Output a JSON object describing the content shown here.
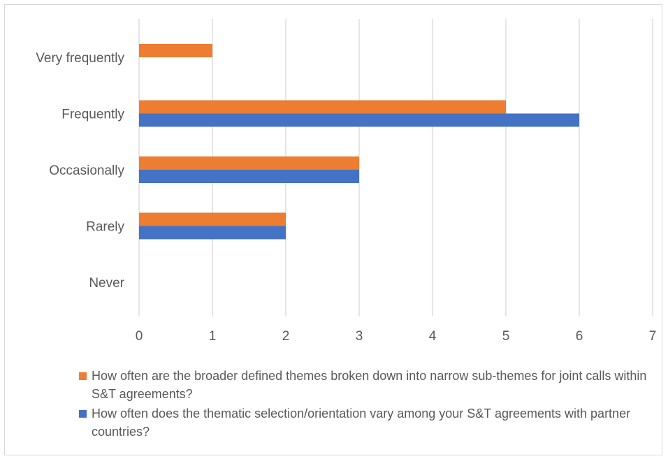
{
  "chart_data": {
    "type": "bar",
    "orientation": "horizontal",
    "categories": [
      "Very frequently",
      "Frequently",
      "Occasionally",
      "Rarely",
      "Never"
    ],
    "series": [
      {
        "name": "How often are the broader defined themes broken down into narrow sub-themes for joint calls within S&T agreements?",
        "color": "#ED7D31",
        "values": [
          1,
          5,
          3,
          2,
          0
        ]
      },
      {
        "name": "How often does the thematic selection/orientation vary among your S&T agreements with partner countries?",
        "color": "#4472C4",
        "values": [
          0,
          6,
          3,
          2,
          0
        ]
      }
    ],
    "xlim": [
      0,
      7
    ],
    "x_ticks": [
      "0",
      "1",
      "2",
      "3",
      "4",
      "5",
      "6",
      "7"
    ],
    "grid": true,
    "legend_position": "bottom"
  }
}
